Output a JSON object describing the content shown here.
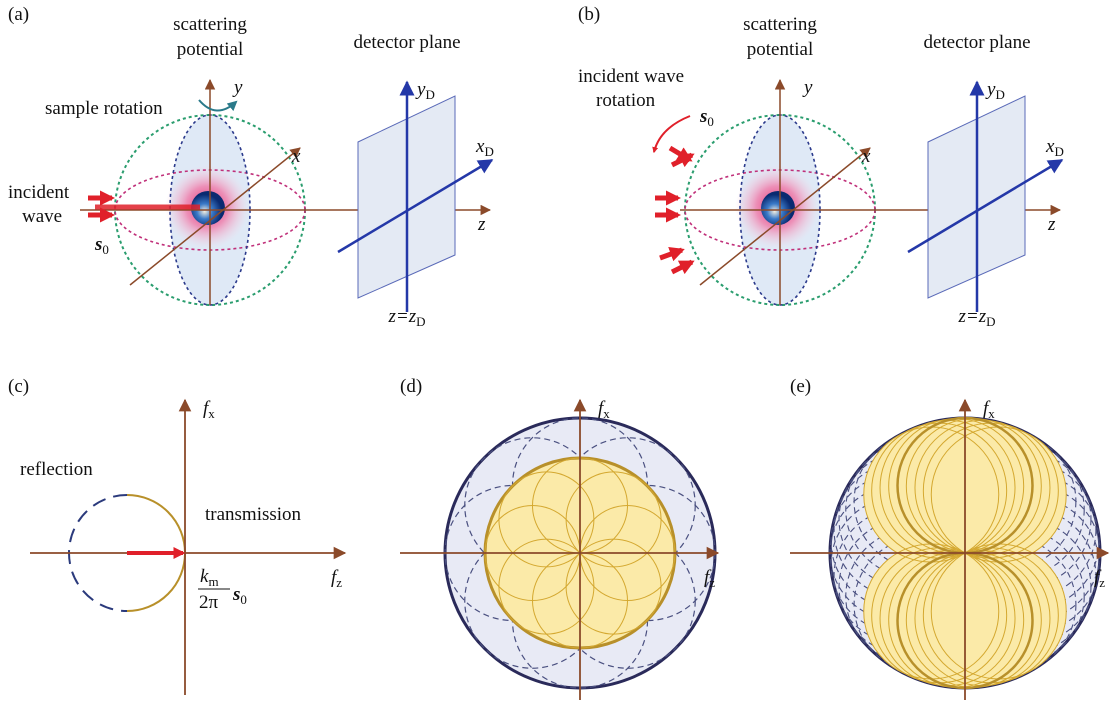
{
  "panel_a": {
    "label": "(a)",
    "scattering_potential": [
      "scattering",
      "potential"
    ],
    "detector_plane": "detector plane",
    "rotation": [
      "sample rotation"
    ],
    "incident_wave": [
      "incident",
      "wave"
    ],
    "s0": [
      "s",
      "0"
    ],
    "axis_x": "x",
    "axis_y": "y",
    "axis_z": "z",
    "axis_xD": [
      "x",
      "D"
    ],
    "axis_yD": [
      "y",
      "D"
    ],
    "plane_eq": [
      "z=z",
      "D"
    ]
  },
  "panel_b": {
    "label": "(b)",
    "scattering_potential": [
      "scattering",
      "potential"
    ],
    "detector_plane": "detector plane",
    "rotation": [
      "incident wave",
      "rotation"
    ],
    "s0": [
      "s",
      "0"
    ],
    "axis_x": "x",
    "axis_y": "y",
    "axis_z": "z",
    "axis_xD": [
      "x",
      "D"
    ],
    "axis_yD": [
      "y",
      "D"
    ],
    "plane_eq": [
      "z=z",
      "D"
    ]
  },
  "panel_c": {
    "label": "(c)",
    "axis_fx": [
      "f",
      "x"
    ],
    "axis_fz": [
      "f",
      "z"
    ],
    "reflection": "reflection",
    "transmission": "transmission",
    "vector_label": {
      "numerator": [
        "k",
        "m"
      ],
      "denominator": "2π",
      "vector": [
        "s",
        "0"
      ]
    }
  },
  "panel_d": {
    "label": "(d)",
    "axis_fx": [
      "f",
      "x"
    ],
    "axis_fz": [
      "f",
      "z"
    ]
  },
  "panel_e": {
    "label": "(e)",
    "axis_fx": [
      "f",
      "x"
    ],
    "axis_fz": [
      "f",
      "z"
    ]
  }
}
